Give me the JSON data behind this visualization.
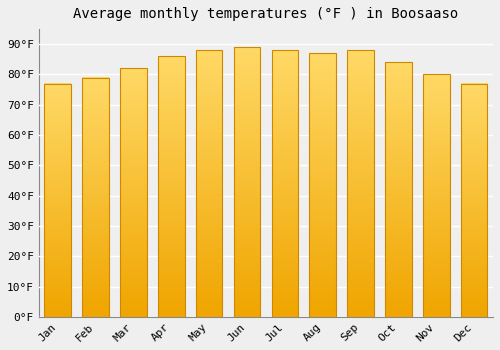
{
  "months": [
    "Jan",
    "Feb",
    "Mar",
    "Apr",
    "May",
    "Jun",
    "Jul",
    "Aug",
    "Sep",
    "Oct",
    "Nov",
    "Dec"
  ],
  "values": [
    77,
    79,
    82,
    86,
    88,
    89,
    88,
    87,
    88,
    84,
    80,
    77
  ],
  "bar_color_top": "#FFD966",
  "bar_color_bottom": "#F0A500",
  "bar_edge_color": "#CC8800",
  "title": "Average monthly temperatures (°F ) in Boosaaso",
  "ylim": [
    0,
    95
  ],
  "yticks": [
    0,
    10,
    20,
    30,
    40,
    50,
    60,
    70,
    80,
    90
  ],
  "ytick_labels": [
    "0°F",
    "10°F",
    "20°F",
    "30°F",
    "40°F",
    "50°F",
    "60°F",
    "70°F",
    "80°F",
    "90°F"
  ],
  "background_color": "#efefef",
  "grid_color": "#ffffff",
  "title_fontsize": 10,
  "tick_fontsize": 8,
  "bar_width": 0.7,
  "figsize": [
    5.0,
    3.5
  ],
  "dpi": 100
}
